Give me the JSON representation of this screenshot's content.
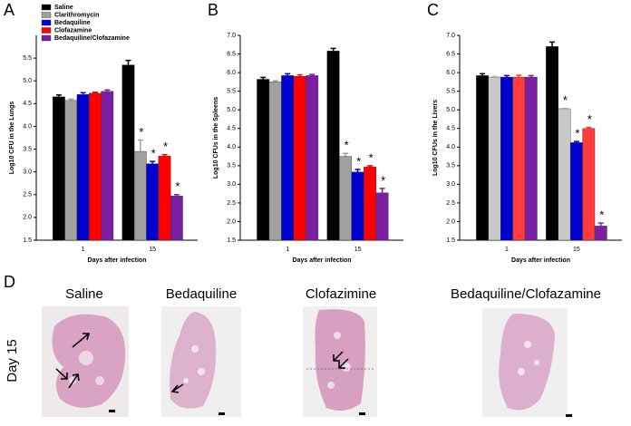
{
  "chart_data": [
    {
      "type": "bar",
      "panel": "A",
      "ylabel": "Log10 CFU in the Lungs",
      "xlabel": "Days after infection",
      "categories": [
        "1",
        "15"
      ],
      "legend": "upper-left",
      "series": [
        {
          "name": "Saline",
          "color": "#000000",
          "values": [
            4.65,
            5.35
          ],
          "errors": [
            0.04,
            0.1
          ],
          "markers": [
            null,
            null
          ]
        },
        {
          "name": "Clarithromycin",
          "color": "#a0a0a0",
          "values": [
            4.57,
            3.45
          ],
          "errors": [
            0.03,
            0.25
          ],
          "markers": [
            null,
            "*"
          ]
        },
        {
          "name": "Bedaquiline",
          "color": "#0000cc",
          "values": [
            4.7,
            3.18
          ],
          "errors": [
            0.04,
            0.05
          ],
          "markers": [
            null,
            "*"
          ]
        },
        {
          "name": "Clofazamine",
          "color": "#ff0000",
          "values": [
            4.73,
            3.35
          ],
          "errors": [
            0.02,
            0.03
          ],
          "markers": [
            null,
            "*"
          ]
        },
        {
          "name": "Bedaquiline/Clofazamine",
          "color": "#7b1fa2",
          "values": [
            4.77,
            2.47
          ],
          "errors": [
            0.03,
            0.03
          ],
          "markers": [
            null,
            "*"
          ]
        }
      ],
      "ylim": [
        1.5,
        6.0
      ],
      "yticks": [
        1.5,
        {
          "value": 2,
          "label": "2.0"
        },
        2.5,
        {
          "value": 3,
          "label": "3.0"
        },
        3.5,
        {
          "value": 4,
          "label": "4.0"
        },
        4.5,
        {
          "value": 5,
          "label": "5.0"
        },
        5.5
      ]
    },
    {
      "type": "bar",
      "panel": "B",
      "ylabel": "Log10 CFUs in the Spleens",
      "xlabel": "Days after infection",
      "categories": [
        "1",
        "15"
      ],
      "series": [
        {
          "color": "#000000",
          "values": [
            5.82,
            6.58
          ],
          "errors": [
            0.05,
            0.07
          ],
          "markers": [
            null,
            null
          ]
        },
        {
          "color": "#a0a0a0",
          "values": [
            5.75,
            3.75
          ],
          "errors": [
            0.03,
            0.08
          ],
          "markers": [
            null,
            "*"
          ]
        },
        {
          "color": "#0000cc",
          "values": [
            5.92,
            3.33
          ],
          "errors": [
            0.05,
            0.07
          ],
          "markers": [
            null,
            "*"
          ]
        },
        {
          "color": "#ff0000",
          "values": [
            5.9,
            3.47
          ],
          "errors": [
            0.04,
            0.03
          ],
          "markers": [
            null,
            "*"
          ]
        },
        {
          "color": "#7b1fa2",
          "values": [
            5.92,
            2.77
          ],
          "errors": [
            0.03,
            0.12
          ],
          "markers": [
            null,
            "*"
          ]
        }
      ],
      "ylim": [
        1.5,
        7.0
      ],
      "yticks": [
        1.5,
        {
          "value": 2,
          "label": "2.0"
        },
        2.5,
        {
          "value": 3,
          "label": "3.0"
        },
        3.5,
        {
          "value": 4,
          "label": "4.0"
        },
        4.5,
        {
          "value": 5,
          "label": "5.0"
        },
        5.5,
        {
          "value": 6,
          "label": "6.0"
        },
        6.5,
        {
          "value": 7,
          "label": "7.0"
        }
      ]
    },
    {
      "type": "bar",
      "panel": "C",
      "ylabel": "Log10 CFUs in the Livers",
      "xlabel": "Days after infection",
      "categories": [
        "1",
        "15"
      ],
      "series": [
        {
          "color": "#000000",
          "values": [
            5.92,
            6.7
          ],
          "errors": [
            0.05,
            0.12
          ],
          "markers": [
            null,
            null
          ]
        },
        {
          "color": "#c8c8c8",
          "values": [
            5.88,
            5.03
          ],
          "errors": [
            0.02,
            0.01
          ],
          "markers": [
            null,
            "*"
          ]
        },
        {
          "color": "#0000cc",
          "values": [
            5.88,
            4.12
          ],
          "errors": [
            0.04,
            0.03
          ],
          "markers": [
            null,
            "*"
          ]
        },
        {
          "color": "#ff3b3b",
          "values": [
            5.88,
            4.5
          ],
          "errors": [
            0.05,
            0.03
          ],
          "markers": [
            null,
            "*"
          ]
        },
        {
          "color": "#7b1fa2",
          "values": [
            5.88,
            1.88
          ],
          "errors": [
            0.04,
            0.08
          ],
          "markers": [
            null,
            "*"
          ]
        }
      ],
      "ylim": [
        1.5,
        7.0
      ],
      "yticks": [
        1.5,
        {
          "value": 2,
          "label": "2.0"
        },
        2.5,
        {
          "value": 3,
          "label": "3.0"
        },
        3.5,
        {
          "value": 4,
          "label": "4.0"
        },
        4.5,
        {
          "value": 5,
          "label": "5.0"
        },
        5.5,
        {
          "value": 6,
          "label": "6.0"
        },
        6.5,
        {
          "value": 7,
          "label": "7.0"
        }
      ]
    }
  ],
  "panel_d": {
    "label": "D",
    "row_label": "Day 15",
    "images": [
      {
        "title": "Saline"
      },
      {
        "title": "Bedaquiline"
      },
      {
        "title": "Clofazimine"
      },
      {
        "title": "Bedaquiline/Clofazamine"
      }
    ]
  }
}
